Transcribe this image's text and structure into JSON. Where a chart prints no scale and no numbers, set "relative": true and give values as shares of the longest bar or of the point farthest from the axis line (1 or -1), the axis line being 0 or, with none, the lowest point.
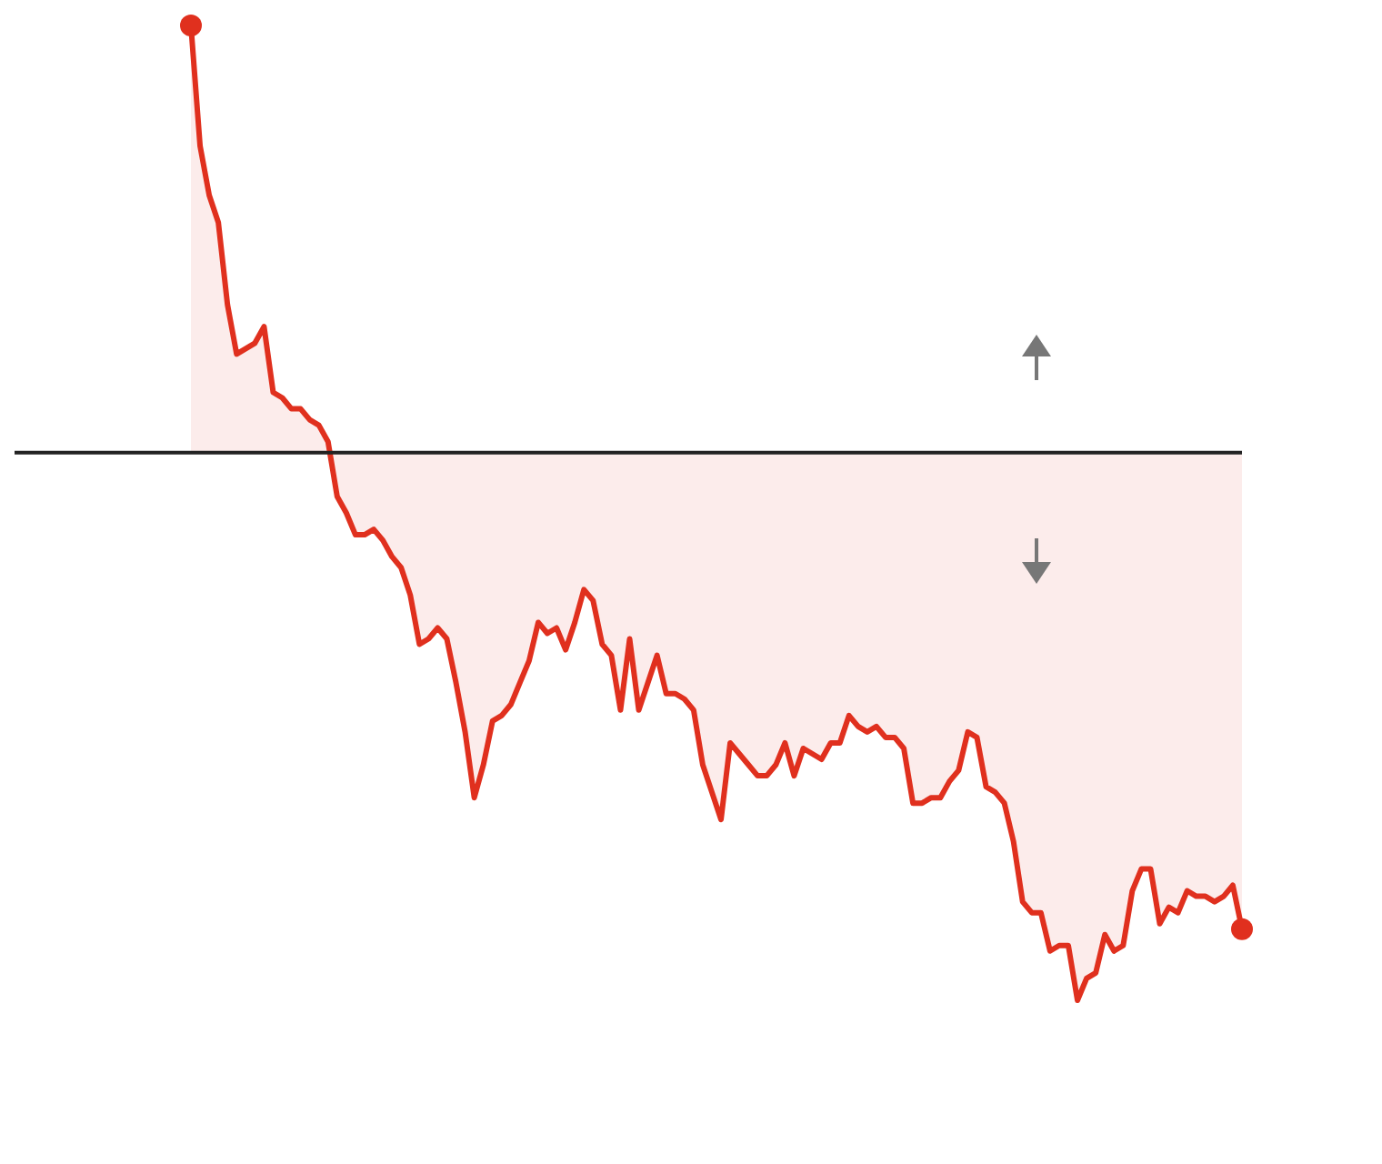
{
  "chart_data": {
    "type": "area",
    "relative": true,
    "categories": [
      null,
      null,
      null,
      null,
      null,
      null,
      null,
      null,
      null,
      null,
      null,
      null,
      null,
      null,
      null,
      null,
      null,
      null,
      null,
      null,
      null,
      null,
      null,
      null,
      null,
      null,
      null,
      null,
      null,
      null,
      null,
      null,
      null,
      null,
      null,
      null,
      null,
      null,
      null,
      null,
      null,
      null,
      null,
      null,
      null,
      null,
      null,
      null,
      null,
      null,
      null,
      null,
      null,
      null,
      null,
      null,
      null,
      null,
      null,
      null,
      null,
      null,
      null,
      null,
      null,
      null,
      null,
      null,
      null,
      null,
      null,
      null,
      null,
      null,
      null,
      null,
      null,
      null,
      null,
      null,
      null,
      null,
      null,
      null,
      null,
      null,
      null,
      null,
      null,
      null,
      null,
      null,
      null,
      null,
      null,
      null,
      null,
      null,
      null,
      null,
      null,
      null,
      null,
      null,
      null,
      null,
      null,
      null,
      null,
      null,
      null,
      null,
      null,
      null,
      null,
      null
    ],
    "color": "#e0301e",
    "values": [
      0.78,
      0.56,
      0.47,
      0.42,
      0.27,
      0.18,
      0.19,
      0.2,
      0.23,
      0.11,
      0.1,
      0.08,
      0.08,
      0.06,
      0.05,
      0.02,
      -0.08,
      -0.11,
      -0.15,
      -0.15,
      -0.14,
      -0.16,
      -0.19,
      -0.21,
      -0.26,
      -0.35,
      -0.34,
      -0.32,
      -0.34,
      -0.42,
      -0.51,
      -0.63,
      -0.57,
      -0.49,
      -0.48,
      -0.46,
      -0.42,
      -0.38,
      -0.31,
      -0.33,
      -0.32,
      -0.36,
      -0.31,
      -0.25,
      -0.27,
      -0.35,
      -0.37,
      -0.47,
      -0.34,
      -0.47,
      -0.42,
      -0.37,
      -0.44,
      -0.44,
      -0.45,
      -0.47,
      -0.57,
      -0.62,
      -0.67,
      -0.53,
      -0.55,
      -0.57,
      -0.59,
      -0.59,
      -0.57,
      -0.53,
      -0.59,
      -0.54,
      -0.55,
      -0.56,
      -0.53,
      -0.53,
      -0.48,
      -0.5,
      -0.51,
      -0.5,
      -0.52,
      -0.52,
      -0.54,
      -0.64,
      -0.64,
      -0.63,
      -0.63,
      -0.6,
      -0.58,
      -0.51,
      -0.52,
      -0.61,
      -0.62,
      -0.64,
      -0.71,
      -0.82,
      -0.84,
      -0.84,
      -0.91,
      -0.9,
      -0.9,
      -1,
      -0.96,
      -0.95,
      -0.88,
      -0.91,
      -0.9,
      -0.8,
      -0.76,
      -0.76,
      -0.86,
      -0.83,
      -0.84,
      -0.8,
      -0.81,
      -0.81,
      -0.82,
      -0.81,
      -0.79,
      -0.87
    ]
  }
}
